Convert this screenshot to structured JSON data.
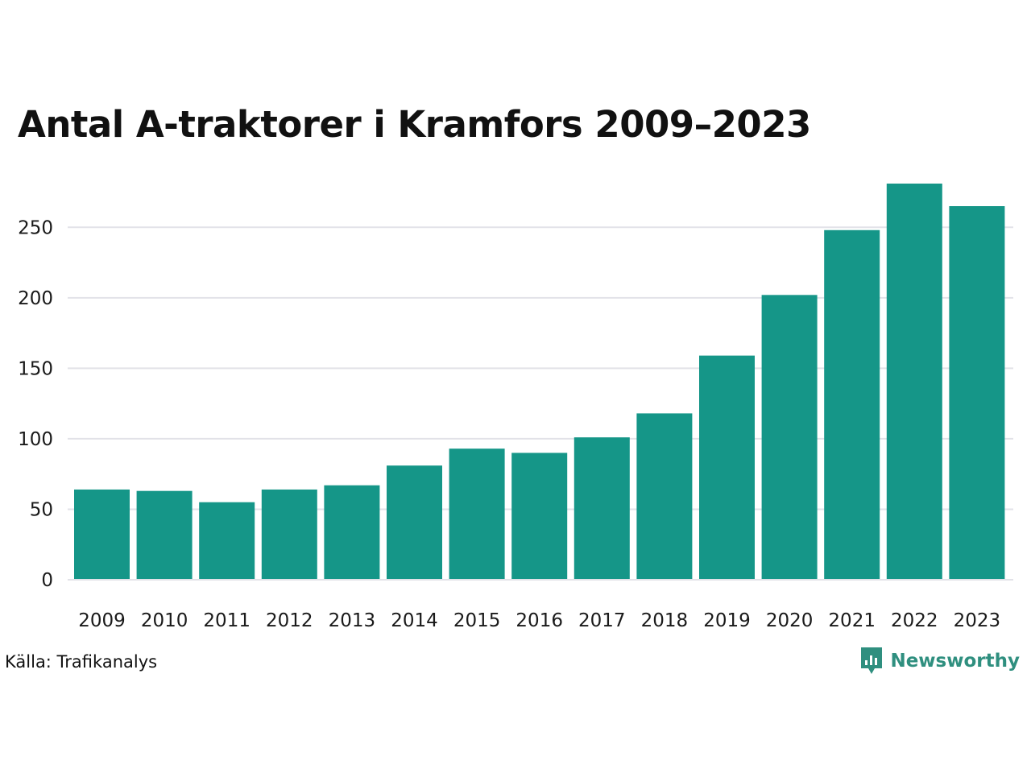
{
  "chart_data": {
    "type": "bar",
    "title": "Antal A-traktorer i Kramfors 2009–2023",
    "categories": [
      "2009",
      "2010",
      "2011",
      "2012",
      "2013",
      "2014",
      "2015",
      "2016",
      "2017",
      "2018",
      "2019",
      "2020",
      "2021",
      "2022",
      "2023"
    ],
    "values": [
      64,
      63,
      55,
      64,
      67,
      81,
      93,
      90,
      101,
      118,
      159,
      202,
      248,
      281,
      265
    ],
    "yticks": [
      0,
      50,
      100,
      150,
      200,
      250
    ],
    "ylim": [
      0,
      281
    ],
    "xlabel": "",
    "ylabel": "",
    "grid": true,
    "bar_color": "#159688",
    "grid_color": "#e2e2e8"
  },
  "footer": {
    "source": "Källa: Trafikanalys",
    "brand": "Newsworthy",
    "brand_icon": "newsworthy-logo-icon",
    "brand_color": "#2f8f7f"
  }
}
